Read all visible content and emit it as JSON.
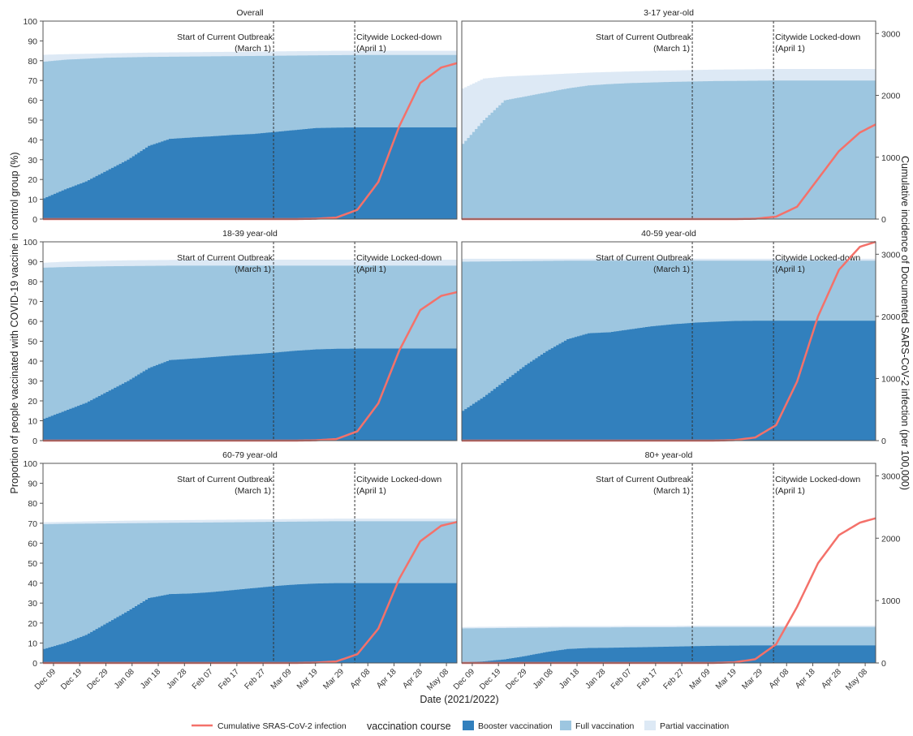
{
  "chart_data": {
    "type": "area",
    "xlabel": "Date (2021/2022)",
    "ylabel_left": "Proportion of people vaccinated with COVID-19 vaccine in control group (%)",
    "ylabel_right": "Cumulative incidence of Documented SARS-CoV-2 infection (per 100,000)",
    "ylim_left": [
      0,
      100
    ],
    "ylim_right": [
      0,
      3200
    ],
    "yticks_left": [
      0,
      10,
      20,
      30,
      40,
      50,
      60,
      70,
      80,
      90,
      100
    ],
    "yticks_right": [
      0,
      1000,
      2000,
      3000
    ],
    "x_ticks": [
      "Dec 09",
      "Dec 19",
      "Dec 29",
      "Jan 08",
      "Jan 18",
      "Jan 28",
      "Feb 07",
      "Feb 17",
      "Feb 27",
      "Mar 09",
      "Mar 19",
      "Mar 29",
      "Apr 08",
      "Apr 18",
      "Apr 28",
      "May 08"
    ],
    "annotations": [
      {
        "label": "Start of Current Outbreak",
        "sub": "(March 1)",
        "day": 88
      },
      {
        "label": "Citywide Locked-down",
        "sub": "(April 1)",
        "day": 119
      }
    ],
    "legend": {
      "infection_label": "Cumulative SRAS-CoV-2 infection",
      "course_title": "vaccination course",
      "booster_label": "Booster vaccination",
      "full_label": "Full vaccination",
      "partial_label": "Partial vaccination"
    },
    "colors": {
      "booster": "#3280bd",
      "full": "#9dc6e0",
      "partial": "#dde9f5",
      "infection": "#f4716a"
    },
    "day_keys": [
      0,
      8,
      16,
      24,
      32,
      40,
      48,
      56,
      64,
      72,
      80,
      88,
      96,
      104,
      112,
      120,
      128,
      136,
      144,
      152,
      158
    ],
    "panels": [
      {
        "title": "Overall",
        "booster": [
          10.5,
          15,
          19,
          24.5,
          30,
          37,
          40.5,
          41.2,
          41.8,
          42.5,
          43,
          44,
          45,
          46,
          46.2,
          46.3,
          46.3,
          46.3,
          46.3,
          46.3,
          46.3
        ],
        "full": [
          79.5,
          80.5,
          81,
          81.5,
          81.7,
          81.9,
          82,
          82.1,
          82.2,
          82.3,
          82.4,
          82.5,
          82.6,
          82.7,
          82.8,
          82.9,
          82.9,
          82.9,
          82.9,
          82.9,
          82.9
        ],
        "partial": [
          83,
          83.3,
          83.5,
          83.7,
          83.9,
          84.1,
          84.2,
          84.3,
          84.4,
          84.5,
          84.6,
          84.7,
          84.8,
          84.9,
          85,
          85,
          85,
          85,
          85,
          85,
          85
        ],
        "infection": [
          0,
          0,
          0,
          0,
          0,
          0,
          0,
          0,
          0,
          0,
          0,
          0,
          0,
          5,
          25,
          150,
          600,
          1500,
          2200,
          2450,
          2520
        ]
      },
      {
        "title": "3-17 year-old",
        "booster": [
          0,
          0,
          0,
          0,
          0,
          0,
          0,
          0,
          0,
          0,
          0,
          0,
          0,
          0,
          0,
          0,
          0,
          0,
          0,
          0,
          0
        ],
        "full": [
          38,
          50,
          60,
          62,
          64,
          66,
          67.5,
          68.2,
          68.7,
          69,
          69.3,
          69.5,
          69.7,
          69.8,
          69.9,
          70,
          70,
          70,
          70,
          70,
          70
        ],
        "partial": [
          66,
          71,
          72,
          72.5,
          73,
          73.5,
          74,
          74.3,
          74.6,
          74.9,
          75.1,
          75.3,
          75.5,
          75.6,
          75.7,
          75.8,
          75.8,
          75.8,
          75.8,
          75.8,
          75.8
        ],
        "infection": [
          0,
          0,
          0,
          0,
          0,
          0,
          0,
          0,
          0,
          0,
          0,
          0,
          0,
          0,
          5,
          40,
          200,
          650,
          1100,
          1400,
          1530
        ]
      },
      {
        "title": "18-39 year-old",
        "booster": [
          11,
          15,
          19,
          24.5,
          30,
          36.5,
          40.5,
          41.2,
          42,
          42.8,
          43.5,
          44.3,
          45.2,
          45.9,
          46.2,
          46.3,
          46.3,
          46.3,
          46.3,
          46.3,
          46.3
        ],
        "full": [
          87,
          87.3,
          87.5,
          87.7,
          87.8,
          87.9,
          88,
          88,
          88,
          88,
          88,
          88,
          88,
          88,
          88,
          88,
          88,
          88,
          88,
          88,
          88
        ],
        "partial": [
          89.5,
          90,
          90.3,
          90.5,
          90.7,
          90.8,
          90.9,
          91,
          91,
          91,
          91,
          91,
          91,
          91,
          91,
          91,
          91,
          91,
          91,
          91,
          91
        ],
        "infection": [
          0,
          0,
          0,
          0,
          0,
          0,
          0,
          0,
          0,
          0,
          0,
          0,
          0,
          5,
          25,
          150,
          600,
          1450,
          2100,
          2330,
          2390
        ]
      },
      {
        "title": "40-59 year-old",
        "booster": [
          15,
          22,
          30,
          38,
          45,
          51,
          54,
          54.5,
          56,
          57.5,
          58.5,
          59.3,
          59.8,
          60.2,
          60.3,
          60.3,
          60.3,
          60.3,
          60.3,
          60.3,
          60.3
        ],
        "full": [
          90,
          90.1,
          90.2,
          90.3,
          90.4,
          90.5,
          90.5,
          90.5,
          90.5,
          90.5,
          90.5,
          90.5,
          90.5,
          90.5,
          90.5,
          90.5,
          90.5,
          90.5,
          90.5,
          90.5,
          90.5
        ],
        "partial": [
          91.5,
          91.5,
          91.5,
          91.5,
          91.5,
          91.5,
          91.5,
          91.5,
          91.5,
          91.5,
          91.5,
          91.5,
          91.5,
          91.5,
          91.5,
          91.5,
          91.5,
          91.5,
          91.5,
          91.5,
          91.5
        ],
        "infection": [
          0,
          0,
          0,
          0,
          0,
          0,
          0,
          0,
          0,
          0,
          0,
          0,
          0,
          8,
          50,
          250,
          950,
          2000,
          2750,
          3120,
          3200
        ]
      },
      {
        "title": "60-79 year-old",
        "booster": [
          7,
          10,
          14,
          20,
          26,
          32.5,
          34.5,
          34.8,
          35.5,
          36.5,
          37.5,
          38.5,
          39.3,
          39.8,
          40,
          40,
          40,
          40,
          40,
          40,
          40
        ],
        "full": [
          69.5,
          69.7,
          69.8,
          69.9,
          70,
          70.1,
          70.2,
          70.3,
          70.4,
          70.5,
          70.6,
          70.7,
          70.8,
          70.9,
          71,
          71,
          71,
          71,
          71,
          71,
          71
        ],
        "partial": [
          70.5,
          70.7,
          70.9,
          71.1,
          71.3,
          71.4,
          71.5,
          71.6,
          71.7,
          71.8,
          71.9,
          72,
          72.1,
          72.2,
          72.3,
          72.3,
          72.3,
          72.3,
          72.3,
          72.3,
          72.3
        ],
        "infection": [
          0,
          0,
          0,
          0,
          0,
          0,
          0,
          0,
          0,
          0,
          0,
          0,
          0,
          5,
          25,
          140,
          550,
          1350,
          1950,
          2200,
          2260
        ]
      },
      {
        "title": "80+ year-old",
        "booster": [
          0.3,
          0.8,
          1.8,
          3.5,
          5.5,
          7,
          7.5,
          7.6,
          7.8,
          8,
          8.2,
          8.4,
          8.6,
          8.7,
          8.8,
          8.8,
          8.8,
          8.8,
          8.8,
          8.8,
          8.8
        ],
        "full": [
          17.3,
          17.4,
          17.5,
          17.6,
          17.7,
          17.8,
          17.8,
          17.8,
          17.9,
          17.9,
          17.9,
          18,
          18,
          18,
          18,
          18,
          18,
          18,
          18,
          18,
          18
        ],
        "partial": [
          18,
          18.1,
          18.2,
          18.3,
          18.4,
          18.5,
          18.5,
          18.5,
          18.6,
          18.6,
          18.6,
          18.7,
          18.7,
          18.7,
          18.7,
          18.7,
          18.7,
          18.7,
          18.7,
          18.7,
          18.7
        ],
        "infection": [
          0,
          0,
          0,
          0,
          0,
          0,
          0,
          0,
          0,
          0,
          0,
          0,
          0,
          10,
          60,
          300,
          900,
          1600,
          2050,
          2250,
          2320
        ]
      }
    ]
  }
}
